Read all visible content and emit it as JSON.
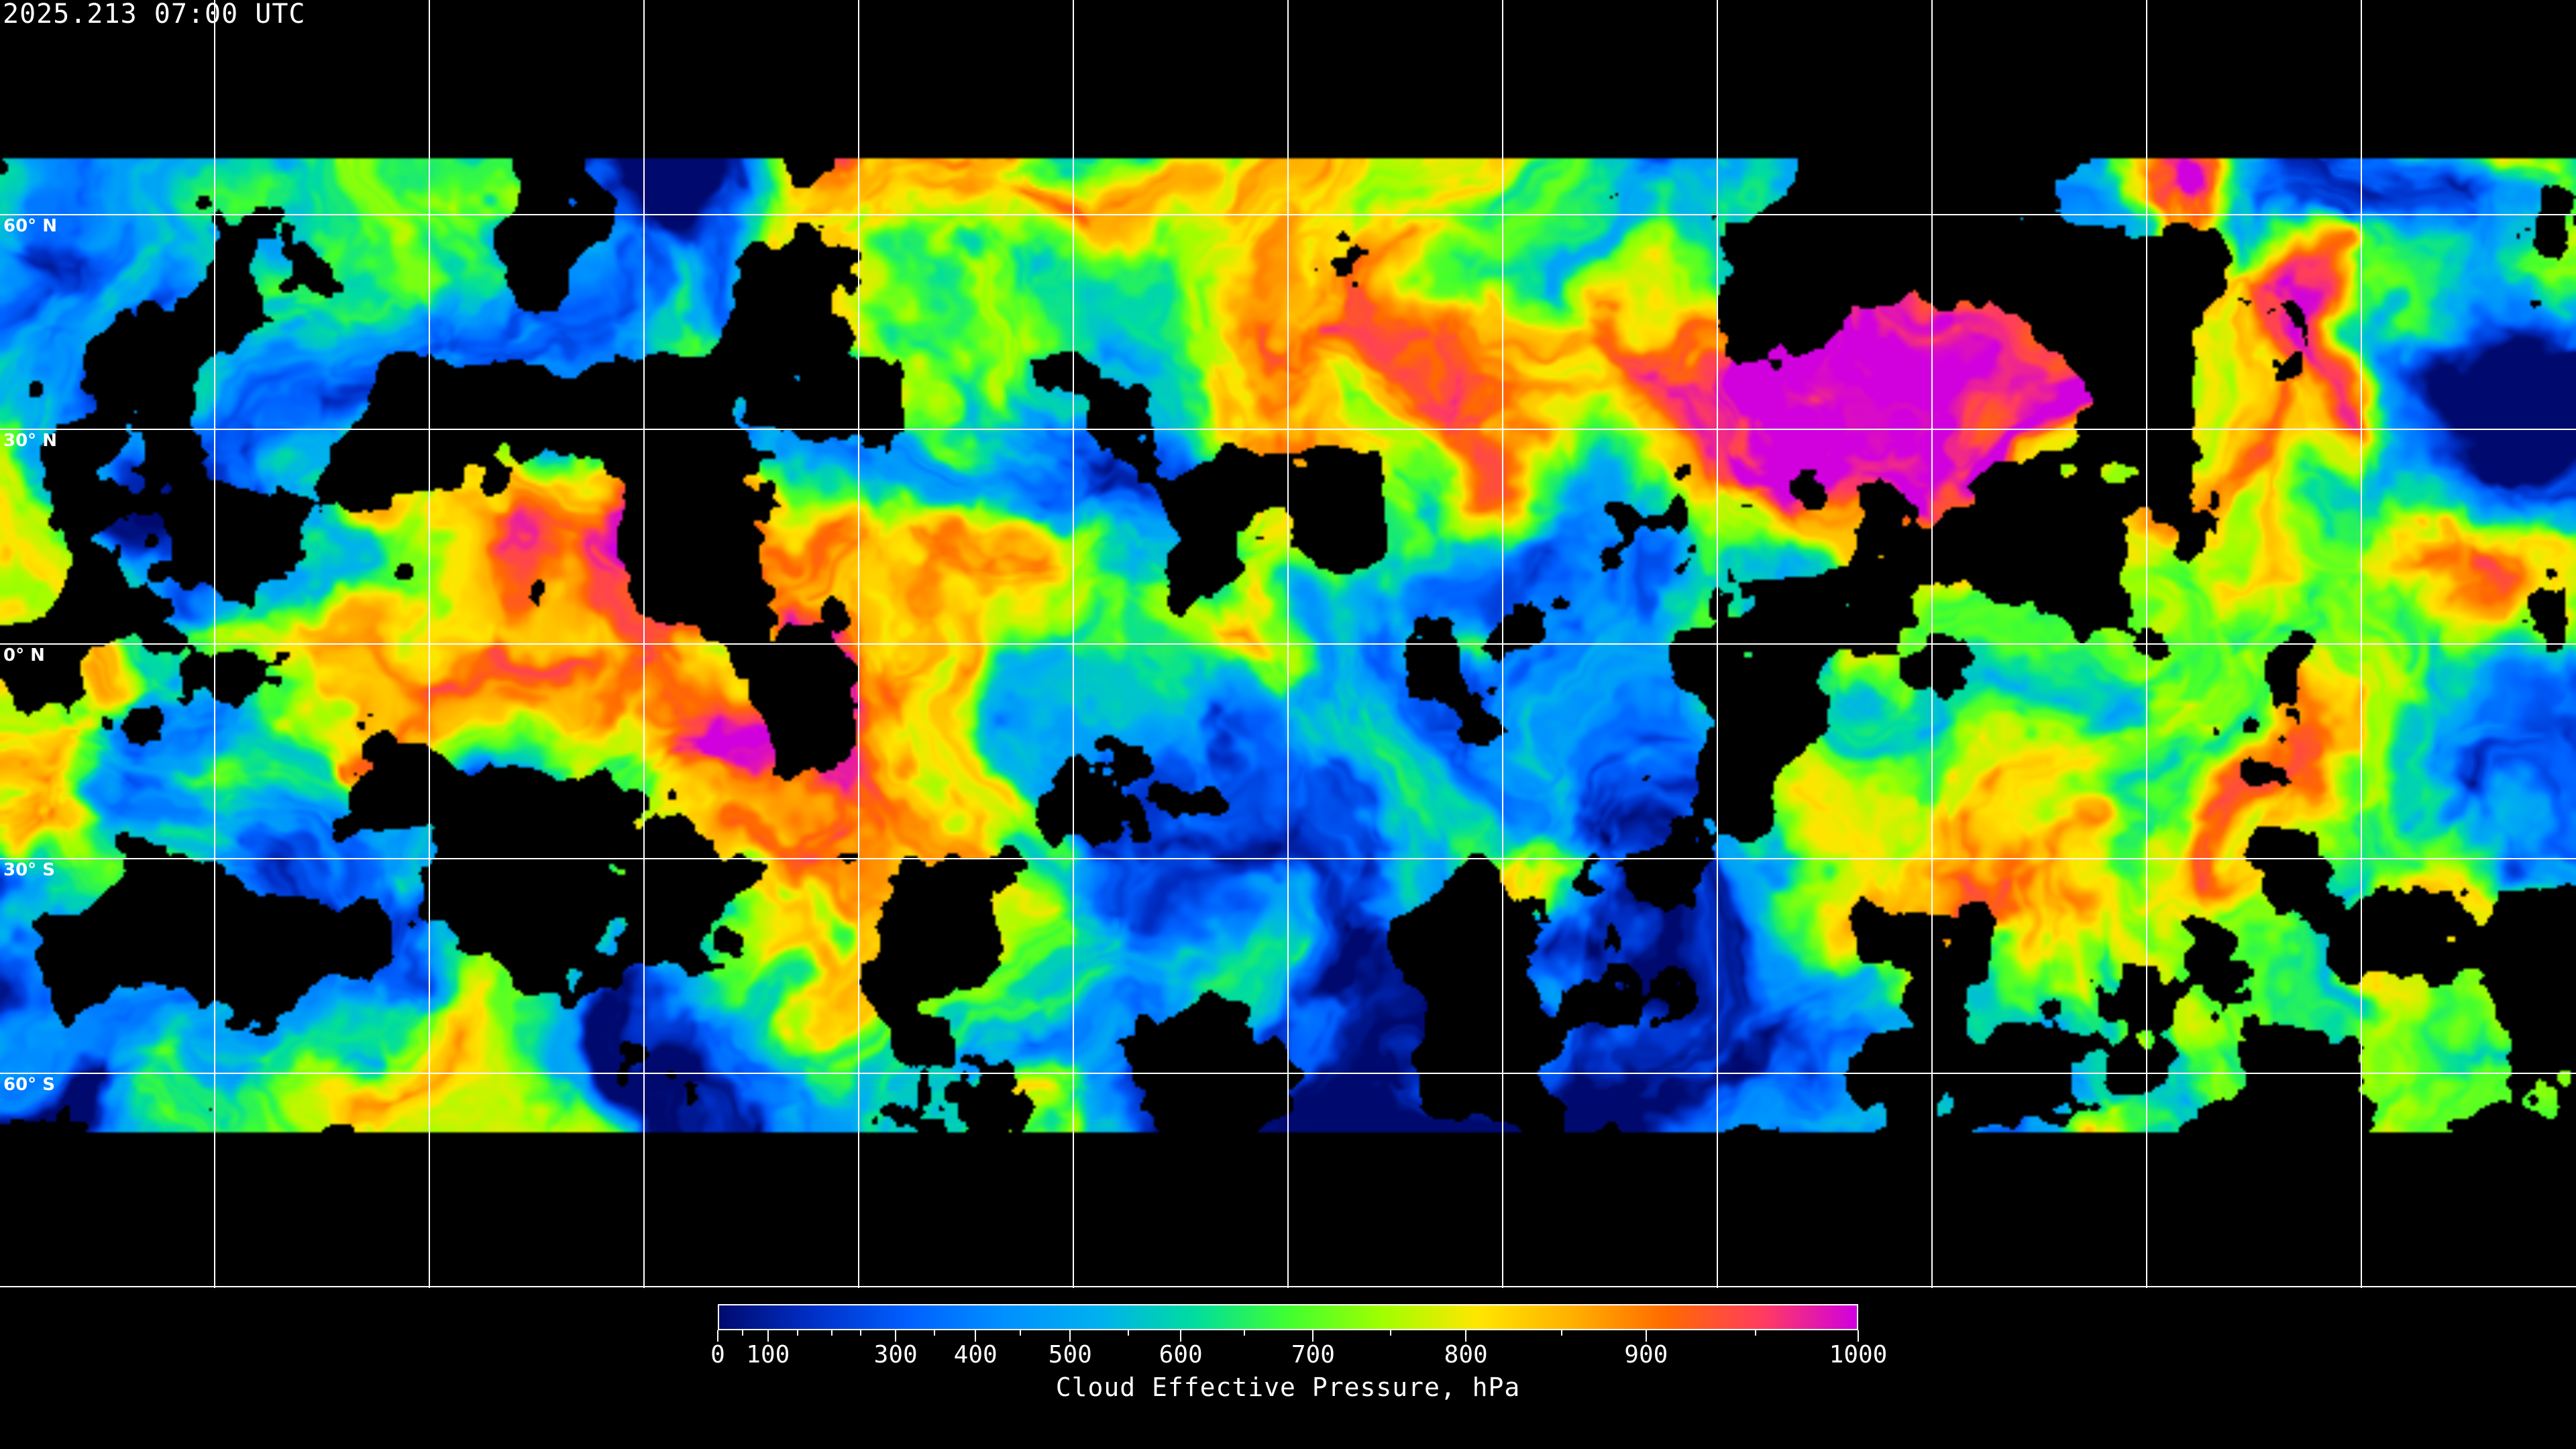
{
  "header": {
    "timestamp": "2025.213 07:00 UTC"
  },
  "map": {
    "projection": "equirectangular",
    "grid_spacing_degrees": 30,
    "gridline_color": "#ffffff",
    "coastline_color": "#ffffff",
    "background_color": "#000000",
    "lat_labels": [
      "60° N",
      "30° N",
      "0° N",
      "30° S",
      "60° S"
    ]
  },
  "colorbar": {
    "title": "Cloud Effective Pressure, hPa",
    "tick_labels": [
      "0",
      "100",
      "300",
      "400",
      "500",
      "600",
      "700",
      "800",
      "900",
      "1000"
    ],
    "range": [
      0,
      1000
    ],
    "colors": [
      "#000a6e",
      "#0030c8",
      "#0060ff",
      "#0090ff",
      "#00b0f0",
      "#00dca0",
      "#40ff30",
      "#a0ff00",
      "#ffe600",
      "#ffb000",
      "#ff6a00",
      "#ff3c60",
      "#d000e0"
    ]
  }
}
